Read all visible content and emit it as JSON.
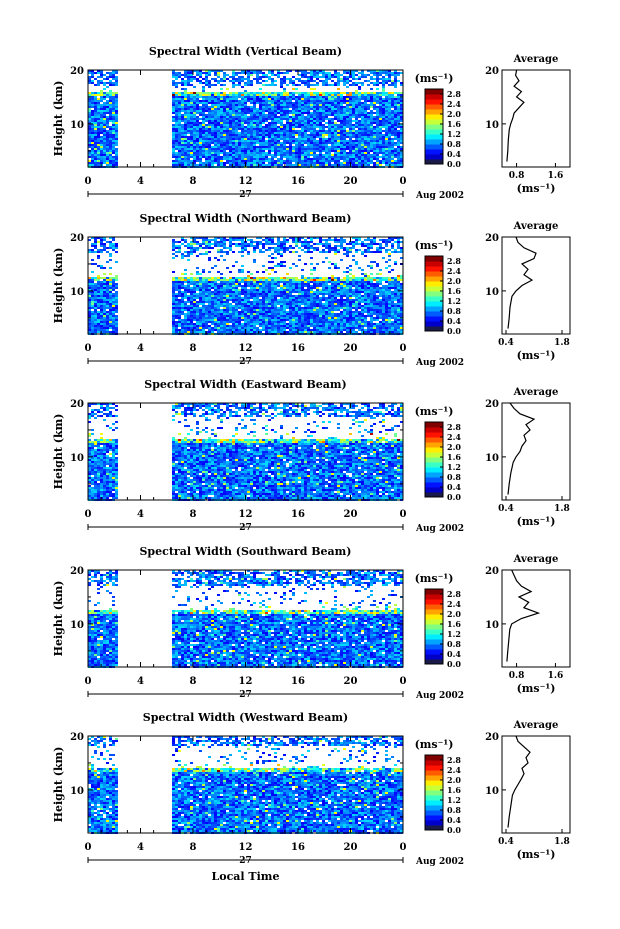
{
  "figure": {
    "ylabel": "Height (km)",
    "xlabel": "Local Time",
    "date_day": "27",
    "date_month_year": "Aug 2002",
    "avg_title": "Average",
    "colorbar_unit": "(ms⁻¹)",
    "avg_unit": "(ms⁻¹)"
  },
  "chart_data": [
    {
      "type": "heatmap",
      "title": "Spectral Width (Vertical Beam)",
      "x_ticks": [
        "0",
        "4",
        "8",
        "12",
        "16",
        "20",
        "0"
      ],
      "xlim": [
        0,
        24
      ],
      "y_ticks": [
        "10",
        "20"
      ],
      "ylim": [
        2,
        20
      ],
      "data_gap_hours": [
        2.2,
        6.3
      ],
      "colorbar_ticks": [
        "0.0",
        "0.4",
        "0.8",
        "1.2",
        "1.6",
        "2.0",
        "2.4",
        "2.8"
      ],
      "colorbar_range": [
        0,
        3.0
      ],
      "clear_band_km": [
        16,
        17
      ],
      "avg": {
        "title": "Average",
        "x_ticks": [
          "0.8",
          "1.6"
        ],
        "xlim": [
          0.5,
          1.9
        ],
        "y_ticks": [
          "10",
          "20"
        ],
        "heights": [
          3,
          5,
          7,
          9,
          10,
          11,
          12,
          13,
          14,
          15,
          16,
          17,
          18,
          19,
          20
        ],
        "values": [
          0.6,
          0.62,
          0.63,
          0.65,
          0.68,
          0.72,
          0.75,
          0.85,
          0.95,
          0.8,
          0.9,
          0.75,
          0.85,
          0.78,
          0.8
        ]
      }
    },
    {
      "type": "heatmap",
      "title": "Spectral Width (Northward Beam)",
      "x_ticks": [
        "0",
        "4",
        "8",
        "12",
        "16",
        "20",
        "0"
      ],
      "xlim": [
        0,
        24
      ],
      "y_ticks": [
        "10",
        "20"
      ],
      "ylim": [
        2,
        20
      ],
      "data_gap_hours": [
        2.2,
        6.3
      ],
      "colorbar_ticks": [
        "0.0",
        "0.4",
        "0.8",
        "1.2",
        "1.6",
        "2.0",
        "2.4",
        "2.8"
      ],
      "colorbar_range": [
        0,
        3.0
      ],
      "clear_band_km": [
        12.5,
        17
      ],
      "avg": {
        "title": "Average",
        "x_ticks": [
          "0.4",
          "1.8"
        ],
        "xlim": [
          0.3,
          2.0
        ],
        "y_ticks": [
          "10",
          "20"
        ],
        "heights": [
          3,
          5,
          7,
          9,
          10,
          11,
          12,
          13,
          14,
          15,
          16,
          17,
          18,
          19,
          20
        ],
        "values": [
          0.45,
          0.48,
          0.5,
          0.55,
          0.65,
          0.8,
          1.05,
          0.85,
          0.95,
          0.8,
          1.1,
          1.15,
          0.85,
          0.7,
          0.65
        ]
      }
    },
    {
      "type": "heatmap",
      "title": "Spectral Width (Eastward Beam)",
      "x_ticks": [
        "0",
        "4",
        "8",
        "12",
        "16",
        "20",
        "0"
      ],
      "xlim": [
        0,
        24
      ],
      "y_ticks": [
        "10",
        "20"
      ],
      "ylim": [
        2,
        20
      ],
      "data_gap_hours": [
        2.2,
        6.3
      ],
      "colorbar_ticks": [
        "0.0",
        "0.4",
        "0.8",
        "1.2",
        "1.6",
        "2.0",
        "2.4",
        "2.8"
      ],
      "colorbar_range": [
        0,
        3.0
      ],
      "clear_band_km": [
        13.5,
        17.5
      ],
      "avg": {
        "title": "Average",
        "x_ticks": [
          "0.4",
          "1.8"
        ],
        "xlim": [
          0.3,
          2.0
        ],
        "y_ticks": [
          "10",
          "20"
        ],
        "heights": [
          3,
          5,
          7,
          9,
          10,
          11,
          12,
          13,
          14,
          15,
          16,
          17,
          18,
          19,
          20
        ],
        "values": [
          0.45,
          0.48,
          0.52,
          0.58,
          0.65,
          0.75,
          0.8,
          0.9,
          0.85,
          1.0,
          0.9,
          1.1,
          0.75,
          0.6,
          0.5
        ]
      }
    },
    {
      "type": "heatmap",
      "title": "Spectral Width (Southward Beam)",
      "x_ticks": [
        "0",
        "4",
        "8",
        "12",
        "16",
        "20",
        "0"
      ],
      "xlim": [
        0,
        24
      ],
      "y_ticks": [
        "10",
        "20"
      ],
      "ylim": [
        2,
        20
      ],
      "data_gap_hours": [
        2.2,
        6.3
      ],
      "colorbar_ticks": [
        "0.0",
        "0.4",
        "0.8",
        "1.2",
        "1.6",
        "2.0",
        "2.4",
        "2.8"
      ],
      "colorbar_range": [
        0,
        3.0
      ],
      "clear_band_km": [
        12.5,
        17
      ],
      "avg": {
        "title": "Average",
        "x_ticks": [
          "0.8",
          "1.6"
        ],
        "xlim": [
          0.5,
          1.9
        ],
        "y_ticks": [
          "10",
          "20"
        ],
        "heights": [
          3,
          5,
          7,
          9,
          10,
          11,
          12,
          13,
          14,
          15,
          16,
          17,
          18,
          19,
          20
        ],
        "values": [
          0.6,
          0.62,
          0.64,
          0.66,
          0.7,
          0.9,
          1.25,
          0.95,
          1.05,
          0.85,
          1.1,
          0.9,
          0.8,
          0.75,
          0.7
        ]
      }
    },
    {
      "type": "heatmap",
      "title": "Spectral Width (Westward Beam)",
      "x_ticks": [
        "0",
        "4",
        "8",
        "12",
        "16",
        "20",
        "0"
      ],
      "xlim": [
        0,
        24
      ],
      "y_ticks": [
        "10",
        "20"
      ],
      "ylim": [
        2,
        20
      ],
      "data_gap_hours": [
        2.2,
        6.3
      ],
      "colorbar_ticks": [
        "0.0",
        "0.4",
        "0.8",
        "1.2",
        "1.6",
        "2.0",
        "2.4",
        "2.8"
      ],
      "colorbar_range": [
        0,
        3.0
      ],
      "clear_band_km": [
        14,
        18
      ],
      "avg": {
        "title": "Average",
        "x_ticks": [
          "0.4",
          "1.8"
        ],
        "xlim": [
          0.3,
          2.0
        ],
        "y_ticks": [
          "10",
          "20"
        ],
        "heights": [
          3,
          5,
          7,
          9,
          10,
          11,
          12,
          13,
          14,
          15,
          16,
          17,
          18,
          19,
          20
        ],
        "values": [
          0.45,
          0.48,
          0.52,
          0.56,
          0.62,
          0.7,
          0.78,
          0.85,
          0.8,
          0.95,
          0.9,
          1.0,
          0.85,
          0.7,
          0.65
        ]
      }
    }
  ]
}
